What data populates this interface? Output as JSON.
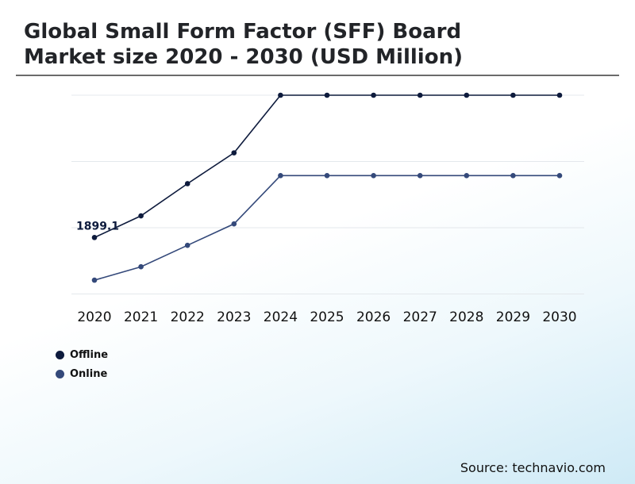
{
  "title_lines": [
    "Global Small Form Factor (SFF) Board",
    "Market size 2020 - 2030 (USD Million)"
  ],
  "source": "Source: technavio.com",
  "chart_data": {
    "type": "line",
    "categories": [
      "2020",
      "2021",
      "2022",
      "2023",
      "2024",
      "2025",
      "2026",
      "2027",
      "2028",
      "2029",
      "2030"
    ],
    "series": [
      {
        "name": "Offline",
        "color": "#0e1b3d",
        "values": [
          1899.1,
          1980,
          2100,
          2215,
          2430,
          2430,
          2430,
          2430,
          2430,
          2430,
          2430
        ]
      },
      {
        "name": "Online",
        "color": "#34497a",
        "values": [
          1740,
          1790,
          1870,
          1950,
          2130,
          2130,
          2130,
          2130,
          2130,
          2130,
          2130
        ]
      }
    ],
    "data_labels": [
      {
        "series": 0,
        "index": 0,
        "text": "1899.1"
      }
    ],
    "ylim": [
      1690,
      2430
    ],
    "grid": true,
    "legend_position": "bottom-left"
  }
}
